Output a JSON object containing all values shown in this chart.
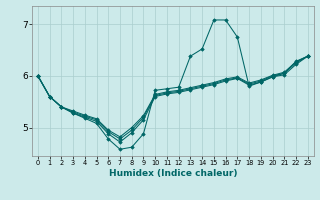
{
  "xlabel": "Humidex (Indice chaleur)",
  "ylabel": "",
  "background_color": "#cceaea",
  "grid_color": "#aacece",
  "line_color": "#006666",
  "xlim": [
    -0.5,
    23.5
  ],
  "ylim": [
    4.45,
    7.35
  ],
  "yticks": [
    5,
    6,
    7
  ],
  "xticks": [
    0,
    1,
    2,
    3,
    4,
    5,
    6,
    7,
    8,
    9,
    10,
    11,
    12,
    13,
    14,
    15,
    16,
    17,
    18,
    19,
    20,
    21,
    22,
    23
  ],
  "series": [
    [
      6.0,
      5.6,
      5.4,
      5.28,
      5.18,
      5.08,
      4.78,
      4.58,
      4.62,
      4.88,
      5.72,
      5.75,
      5.78,
      6.38,
      6.52,
      7.08,
      7.08,
      6.75,
      5.8,
      5.88,
      5.98,
      6.05,
      6.28,
      6.38
    ],
    [
      6.0,
      5.6,
      5.4,
      5.28,
      5.2,
      5.12,
      4.88,
      4.72,
      4.9,
      5.15,
      5.6,
      5.65,
      5.68,
      5.73,
      5.78,
      5.83,
      5.9,
      5.95,
      5.82,
      5.88,
      5.98,
      6.02,
      6.22,
      6.38
    ],
    [
      6.0,
      5.6,
      5.4,
      5.3,
      5.22,
      5.15,
      4.92,
      4.78,
      4.95,
      5.2,
      5.62,
      5.67,
      5.7,
      5.75,
      5.8,
      5.85,
      5.92,
      5.96,
      5.84,
      5.9,
      6.0,
      6.05,
      6.25,
      6.38
    ],
    [
      6.0,
      5.6,
      5.4,
      5.32,
      5.24,
      5.17,
      4.95,
      4.82,
      5.0,
      5.23,
      5.64,
      5.69,
      5.72,
      5.77,
      5.82,
      5.87,
      5.94,
      5.98,
      5.86,
      5.92,
      6.01,
      6.07,
      6.27,
      6.38
    ]
  ]
}
